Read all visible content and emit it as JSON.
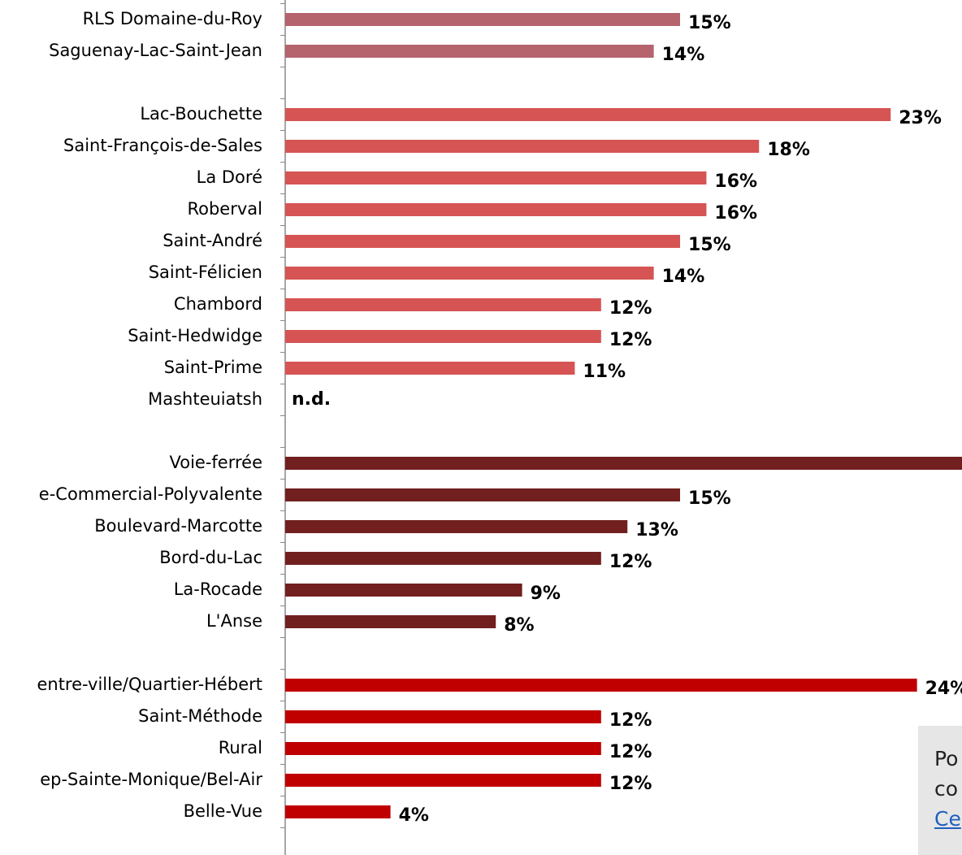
{
  "chart_data": {
    "type": "bar",
    "orientation": "horizontal",
    "categories": [
      "RLS Domaine-du-Roy",
      "Saguenay-Lac-Saint-Jean",
      null,
      "Lac-Bouchette",
      "Saint-François-de-Sales",
      "La Doré",
      "Roberval",
      "Saint-André",
      "Saint-Félicien",
      "Chambord",
      "Saint-Hedwidge",
      "Saint-Prime",
      "Mashteuiatsh",
      null,
      "Voie-ferrée",
      "e-Commercial-Polyvalente",
      "Boulevard-Marcotte",
      "Bord-du-Lac",
      "La-Rocade",
      "L'Anse",
      null,
      "entre-ville/Quartier-Hébert",
      "Saint-Méthode",
      "Rural",
      "ep-Sainte-Monique/Bel-Air",
      "Belle-Vue"
    ],
    "values": [
      15,
      14,
      null,
      23,
      18,
      16,
      16,
      15,
      14,
      12,
      12,
      11,
      null,
      null,
      26,
      15,
      13,
      12,
      9,
      8,
      null,
      24,
      12,
      12,
      12,
      4
    ],
    "value_labels": [
      "15%",
      "14%",
      null,
      "23%",
      "18%",
      "16%",
      "16%",
      "15%",
      "14%",
      "12%",
      "12%",
      "11%",
      "n.d.",
      null,
      null,
      "15%",
      "13%",
      "12%",
      "9%",
      "8%",
      null,
      "24%",
      "12%",
      "12%",
      "12%",
      "4%"
    ],
    "colors": [
      "#b5636d",
      "#b5636d",
      null,
      "#d65454",
      "#d65454",
      "#d65454",
      "#d65454",
      "#d65454",
      "#d65454",
      "#d65454",
      "#d65454",
      "#d65454",
      "#d65454",
      null,
      "#721f1f",
      "#721f1f",
      "#721f1f",
      "#721f1f",
      "#721f1f",
      "#721f1f",
      null,
      "#c00000",
      "#c00000",
      "#c00000",
      "#c00000",
      "#c00000"
    ],
    "xlim": [
      0,
      25.4
    ],
    "note": [
      "Po",
      "co",
      "Ce"
    ]
  }
}
